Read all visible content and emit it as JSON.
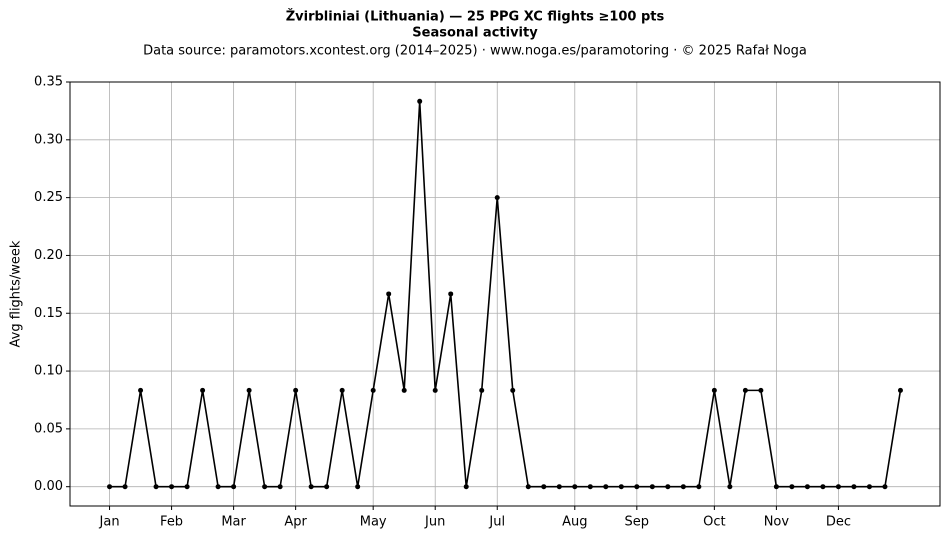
{
  "chart_data": {
    "type": "line",
    "title": "Žvirbliniai (Lithuania)  —  25 PPG XC flights ≥100 pts",
    "subtitle": "Seasonal activity",
    "source": "Data source: paramotors.xcontest.org (2014–2025)  ·  www.noga.es/paramotoring  ·  © 2025 Rafał Noga",
    "y_label": "Avg flights/week",
    "x": [
      1,
      2,
      3,
      4,
      5,
      6,
      7,
      8,
      9,
      10,
      11,
      12,
      13,
      14,
      15,
      16,
      17,
      18,
      19,
      20,
      21,
      22,
      23,
      24,
      25,
      26,
      27,
      28,
      29,
      30,
      31,
      32,
      33,
      34,
      35,
      36,
      37,
      38,
      39,
      40,
      41,
      42,
      43,
      44,
      45,
      46,
      47,
      48,
      49,
      50,
      51,
      52
    ],
    "series": [
      {
        "color": "#000000",
        "values": [
          0,
          0,
          0.0833,
          0,
          0,
          0,
          0.0833,
          0,
          0,
          0.0833,
          0,
          0,
          0.0833,
          0,
          0,
          0.0833,
          0,
          0.0833,
          0.1667,
          0.0833,
          0.3333,
          0.0833,
          0.1667,
          0,
          0.0833,
          0.25,
          0.0833,
          0,
          0,
          0,
          0,
          0,
          0,
          0,
          0,
          0,
          0,
          0,
          0,
          0.0833,
          0,
          0.0833,
          0.0833,
          0,
          0,
          0,
          0,
          0,
          0,
          0,
          0,
          0.0833
        ]
      }
    ],
    "xlim": [
      -1.55,
      54.55
    ],
    "ylim": [
      -0.0167,
      0.35
    ],
    "xticks": [
      {
        "value": 1,
        "label": "Jan"
      },
      {
        "value": 5,
        "label": "Feb"
      },
      {
        "value": 9,
        "label": "Mar"
      },
      {
        "value": 13,
        "label": "Apr"
      },
      {
        "value": 18,
        "label": "May"
      },
      {
        "value": 22,
        "label": "Jun"
      },
      {
        "value": 26,
        "label": "Jul"
      },
      {
        "value": 31,
        "label": "Aug"
      },
      {
        "value": 35,
        "label": "Sep"
      },
      {
        "value": 40,
        "label": "Oct"
      },
      {
        "value": 44,
        "label": "Nov"
      },
      {
        "value": 48,
        "label": "Dec"
      }
    ],
    "yticks": [
      {
        "value": 0,
        "label": "0.00"
      },
      {
        "value": 0.05,
        "label": "0.05"
      },
      {
        "value": 0.1,
        "label": "0.10"
      },
      {
        "value": 0.15,
        "label": "0.15"
      },
      {
        "value": 0.2,
        "label": "0.20"
      },
      {
        "value": 0.25,
        "label": "0.25"
      },
      {
        "value": 0.3,
        "label": "0.30"
      },
      {
        "value": 0.35,
        "label": "0.35"
      }
    ],
    "grid": true
  }
}
